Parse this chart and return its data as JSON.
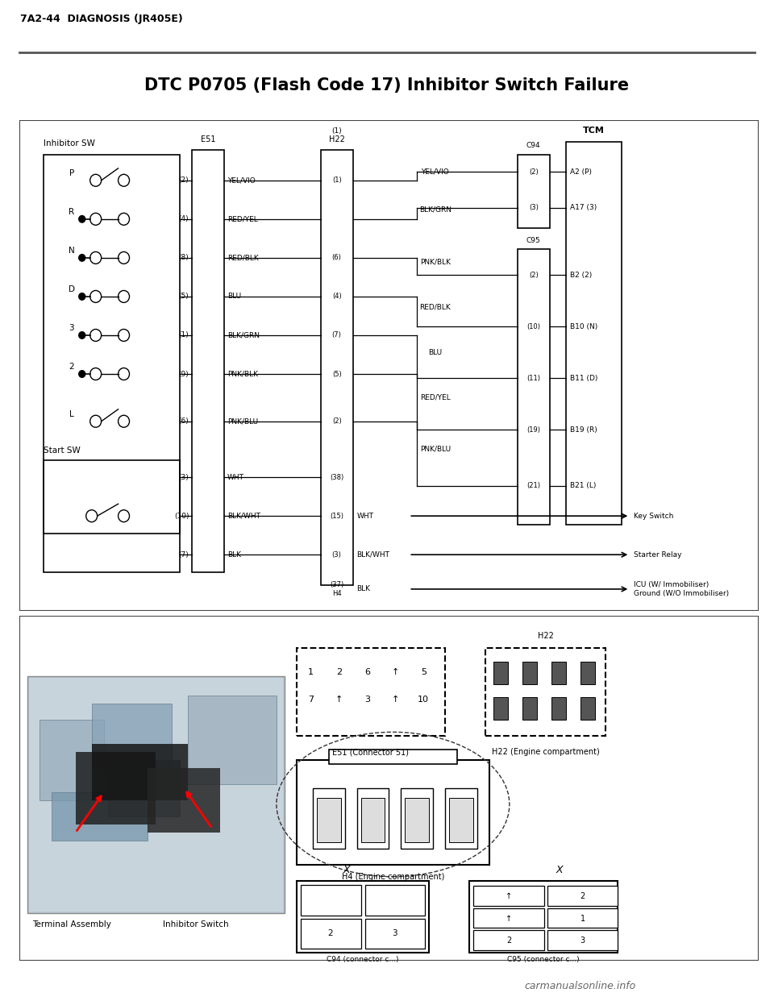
{
  "page_header": "7A2-44  DIAGNOSIS (JR405E)",
  "title": "DTC P0705 (Flash Code 17) Inhibitor Switch Failure",
  "bg_color": "#ffffff",
  "inhibitor_sw_label": "Inhibitor SW",
  "start_sw_label": "Start SW",
  "tcm_label": "TCM",
  "gear_positions": [
    "P",
    "R",
    "N",
    "D",
    "3",
    "2",
    "L"
  ],
  "e51_label": "E51",
  "h22_label": "H22",
  "c94_label": "C94",
  "c95_label": "C95",
  "e51_pin_data": [
    [
      "(2)",
      "YEL/VIO"
    ],
    [
      "(4)",
      "RED/YEL"
    ],
    [
      "(8)",
      "RED/BLK"
    ],
    [
      "(5)",
      "BLU"
    ],
    [
      "(1)",
      "BLK/GRN"
    ],
    [
      "(9)",
      "PNK/BLK"
    ],
    [
      "(6)",
      "PNK/BLU"
    ],
    [
      "(3)",
      "WHT"
    ],
    [
      "(10)",
      "BLK/WHT"
    ],
    [
      "(7)",
      "BLK"
    ]
  ],
  "h22_pins": [
    "(1)",
    "(6)",
    "(4)",
    "(7)",
    "(5)",
    "(2)",
    "(38)",
    "(15)",
    "(3)",
    "(37)\nH4"
  ],
  "c94_pins": [
    "(2)",
    "(3)"
  ],
  "c95_pins": [
    "(2)",
    "(10)",
    "(11)",
    "(19)",
    "(21)"
  ],
  "right_wire_data": [
    [
      "YEL/VIO",
      0,
      0
    ],
    [
      "BLK/GRN",
      1,
      1
    ],
    [
      "PNK/BLK",
      2,
      2
    ],
    [
      "RED/BLK",
      3,
      3
    ],
    [
      "BLU",
      4,
      4
    ],
    [
      "RED/YEL",
      5,
      5
    ],
    [
      "PNK/BLU",
      6,
      6
    ]
  ],
  "tcm_pins": [
    "A2 (P)",
    "A17 (3)",
    "B2 (2)",
    "B10 (N)",
    "B11 (D)",
    "B19 (R)",
    "B21 (L)"
  ],
  "output_wires": [
    "WHT",
    "BLK/WHT",
    "BLK"
  ],
  "output_labels": [
    "Key Switch",
    "Starter Relay",
    "ICU (W/ Immobiliser)\nGround (W/O Immobiliser)"
  ],
  "bottom_labels": [
    "Terminal Assembly",
    "Inhibitor Switch"
  ],
  "watermark": "carmanualsonline.info"
}
